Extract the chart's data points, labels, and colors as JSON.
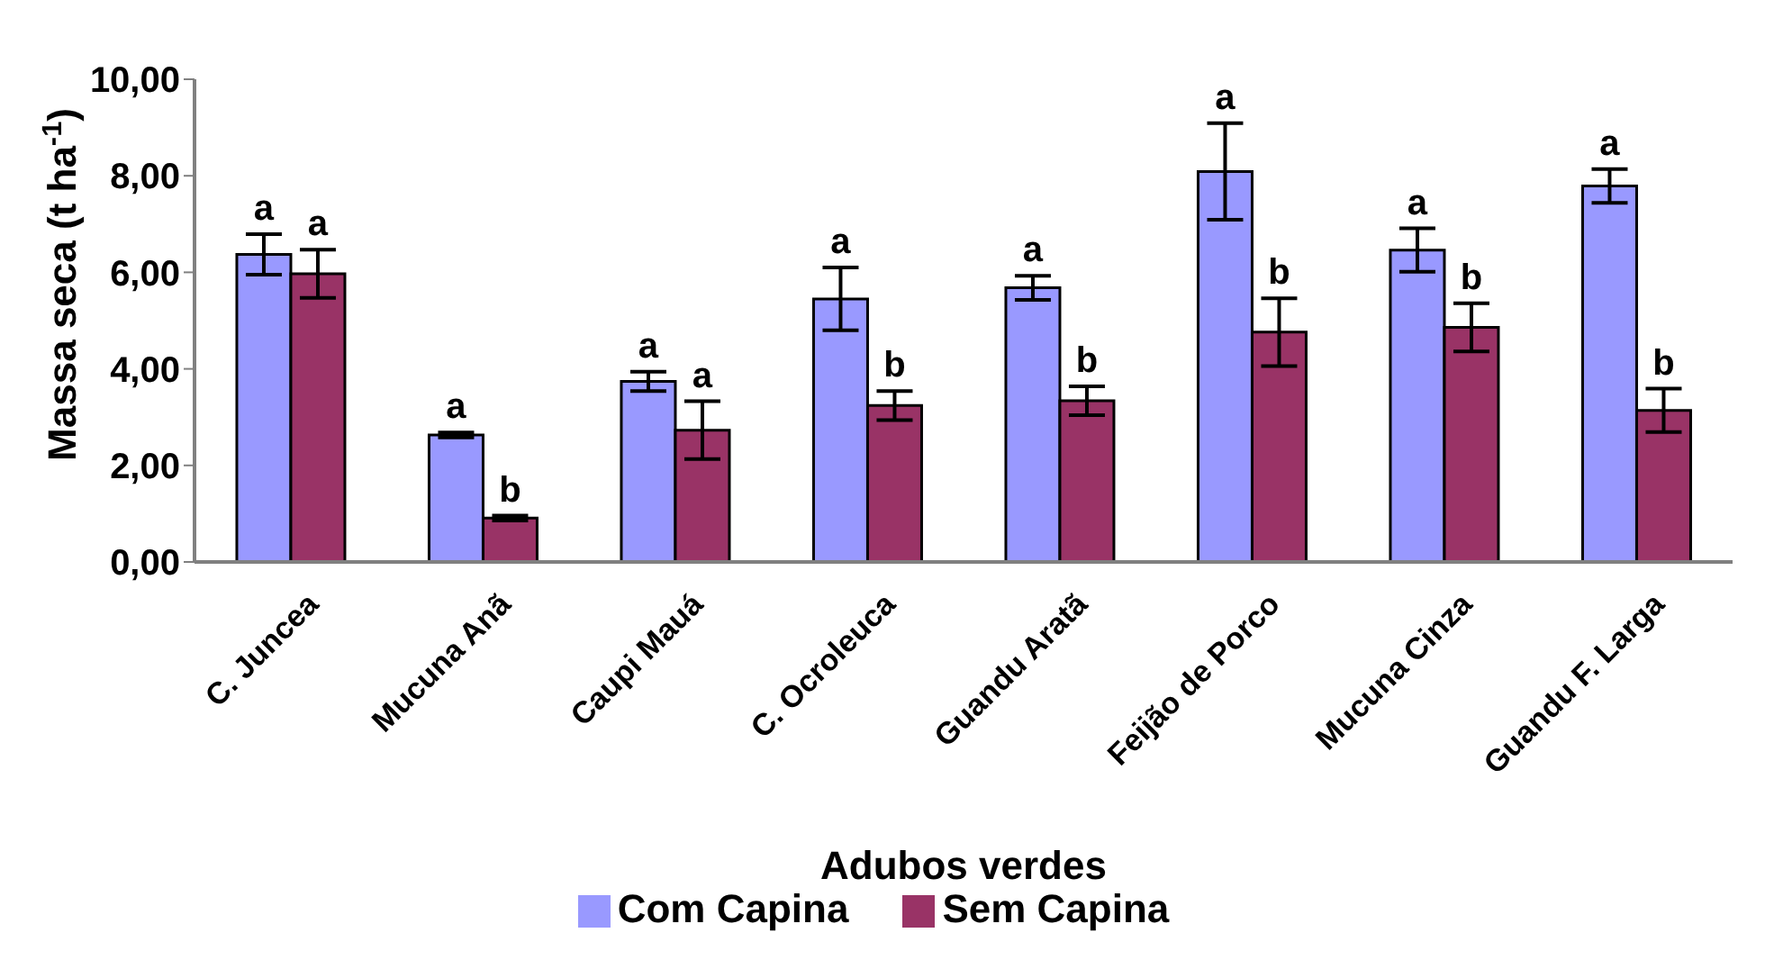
{
  "chart_data": {
    "type": "bar",
    "xlabel": "Adubos verdes",
    "ylabel": "Massa seca (t ha$^{-1}$)",
    "categories": [
      "C. Juncea",
      "Mucuna Anã",
      "Caupi Mauá",
      "C. Ocroleuca",
      "Guandu Aratã",
      "Feijão de Porco",
      "Mucuna Cinza",
      "Guandu F. Larga"
    ],
    "series": [
      {
        "name": "Com Capina",
        "color": "#9999ff",
        "values": [
          6.37,
          2.63,
          3.74,
          5.45,
          5.68,
          8.09,
          6.46,
          7.79
        ],
        "errors": [
          0.42,
          0.05,
          0.2,
          0.65,
          0.25,
          1.0,
          0.45,
          0.35
        ],
        "value_labels": [
          "a",
          "a",
          "a",
          "a",
          "a",
          "a",
          "a",
          "a"
        ]
      },
      {
        "name": "Sem Capina",
        "color": "#993366",
        "values": [
          5.97,
          0.91,
          2.73,
          3.24,
          3.34,
          4.76,
          4.86,
          3.14
        ],
        "errors": [
          0.5,
          0.05,
          0.6,
          0.3,
          0.3,
          0.7,
          0.5,
          0.45
        ],
        "value_labels": [
          "a",
          "b",
          "a",
          "b",
          "b",
          "b",
          "b",
          "b"
        ]
      }
    ],
    "ylim": [
      0,
      10
    ],
    "yticks": [
      {
        "value": 0,
        "label": "0,00"
      },
      {
        "value": 2,
        "label": "2,00"
      },
      {
        "value": 4,
        "label": "4,00"
      },
      {
        "value": 6,
        "label": "6,00"
      },
      {
        "value": 8,
        "label": "8,00"
      },
      {
        "value": 10,
        "label": "10,00"
      }
    ],
    "grid": false,
    "legend": "bottom"
  }
}
